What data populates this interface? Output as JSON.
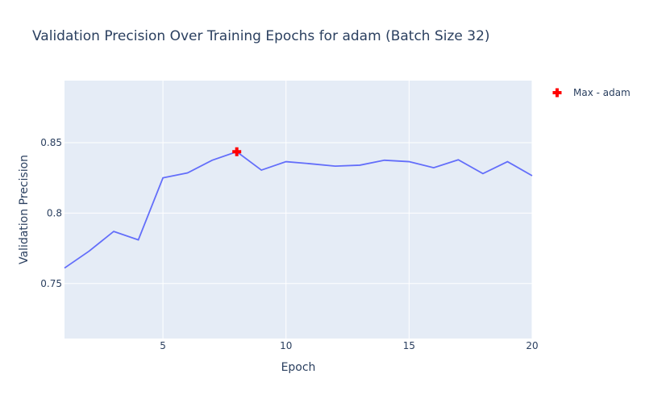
{
  "chart_data": {
    "type": "line",
    "title": "Validation Precision Over Training Epochs for adam (Batch Size 32)",
    "xlabel": "Epoch",
    "ylabel": "Validation Precision",
    "xlim": [
      1,
      20
    ],
    "ylim": [
      0.711,
      0.894
    ],
    "xticks": [
      5,
      10,
      15,
      20
    ],
    "yticks": [
      0.75,
      0.8,
      0.85
    ],
    "xtick_labels": [
      "5",
      "10",
      "15",
      "20"
    ],
    "ytick_labels": [
      "0.75",
      "0.8",
      "0.85"
    ],
    "grid": true,
    "legend_position": "top-right",
    "colors": {
      "line": "#636efa",
      "marker": "#ff0000",
      "plot_bg": "#e5ecf6",
      "grid": "#ffffff",
      "text": "#2a3f5f"
    },
    "series": [
      {
        "x": [
          1,
          2,
          3,
          4,
          5,
          6,
          7,
          8,
          9,
          10,
          11,
          12,
          13,
          14,
          15,
          16,
          17,
          18,
          19,
          20
        ],
        "values": [
          0.761,
          0.773,
          0.787,
          0.781,
          0.825,
          0.8285,
          0.8375,
          0.8435,
          0.8305,
          0.8365,
          0.835,
          0.8333,
          0.834,
          0.8375,
          0.8365,
          0.8322,
          0.8378,
          0.828,
          0.8365,
          0.8265
        ]
      },
      {
        "name": "Max - adam",
        "type": "scatter",
        "marker": "cross",
        "x": [
          8
        ],
        "values": [
          0.8435
        ]
      }
    ]
  }
}
